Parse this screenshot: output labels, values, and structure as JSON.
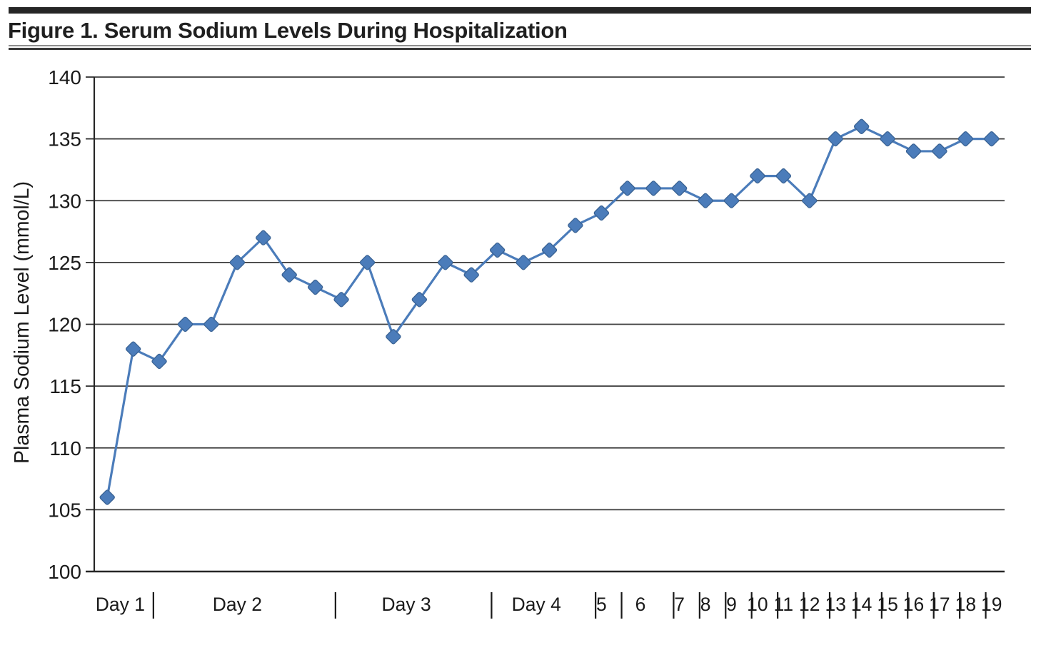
{
  "figure": {
    "title": "Figure 1. Serum Sodium Levels During Hospitalization"
  },
  "chart_data": {
    "type": "line",
    "title": "Figure 1. Serum Sodium Levels During Hospitalization",
    "xlabel": "",
    "ylabel": "Plasma Sodium Level (mmol/L)",
    "ylim": [
      100,
      140
    ],
    "yticks": [
      100,
      105,
      110,
      115,
      120,
      125,
      130,
      135,
      140
    ],
    "grid": true,
    "legend": "none",
    "marker": "diamond",
    "series": [
      {
        "name": "Plasma Sodium Level",
        "values": [
          106,
          118,
          117,
          120,
          120,
          125,
          127,
          124,
          123,
          122,
          125,
          119,
          122,
          125,
          124,
          126,
          125,
          126,
          128,
          129,
          131,
          131,
          131,
          130,
          130,
          132,
          132,
          130,
          135,
          136,
          135,
          134,
          134,
          135,
          135
        ]
      }
    ],
    "x_groups": [
      {
        "label": "Day 1",
        "count": 2
      },
      {
        "label": "Day 2",
        "count": 7
      },
      {
        "label": "Day 3",
        "count": 6
      },
      {
        "label": "Day 4",
        "count": 4
      },
      {
        "label": "5",
        "count": 1
      },
      {
        "label": "6",
        "count": 2
      },
      {
        "label": "7",
        "count": 1
      },
      {
        "label": "8",
        "count": 1
      },
      {
        "label": "9",
        "count": 1
      },
      {
        "label": "10",
        "count": 1
      },
      {
        "label": "11",
        "count": 1
      },
      {
        "label": "12",
        "count": 1
      },
      {
        "label": "13",
        "count": 1
      },
      {
        "label": "14",
        "count": 1
      },
      {
        "label": "15",
        "count": 1
      },
      {
        "label": "16",
        "count": 1
      },
      {
        "label": "17",
        "count": 1
      },
      {
        "label": "18",
        "count": 1
      },
      {
        "label": "19",
        "count": 1
      }
    ],
    "x_group_separator": "|",
    "colors": {
      "series": "#4b7cba",
      "series_border": "#3a6394",
      "gridline": "#3c3c3c",
      "axis": "#262626",
      "text": "#1a1a1a"
    }
  }
}
